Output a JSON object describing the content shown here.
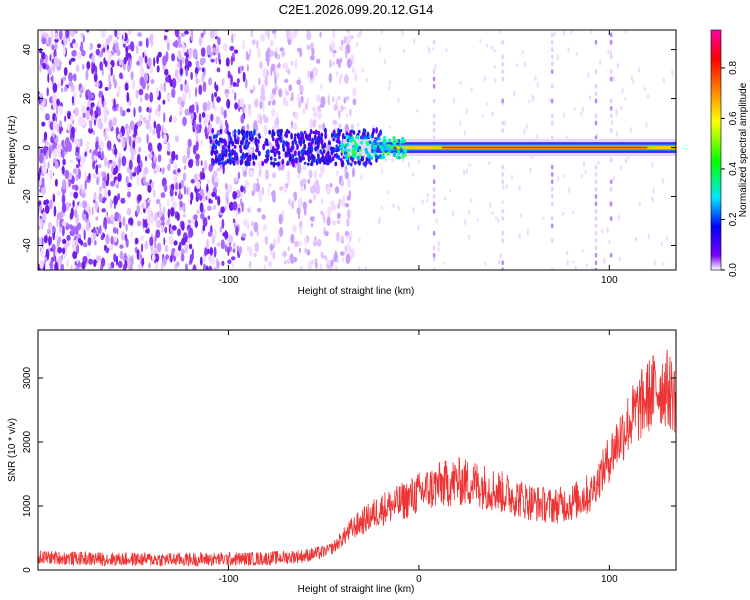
{
  "title": "C2E1.2026.099.20.12.G14",
  "chart_data": [
    {
      "type": "heatmap",
      "xlabel": "Height of straight line (km)",
      "ylabel": "Frequency (Hz)",
      "xlim": [
        -200,
        135
      ],
      "ylim": [
        -50,
        48
      ],
      "xticks": [
        -100,
        0,
        100
      ],
      "xtick_labels": [
        "-100",
        "",
        "100"
      ],
      "yticks": [
        -40,
        -20,
        0,
        20,
        40
      ],
      "ytick_labels": [
        "-40",
        "-20",
        "0",
        "20",
        "40"
      ],
      "colorbar": {
        "label": "Normalized spectral amplitude",
        "range": [
          0,
          0.95
        ],
        "ticks": [
          0,
          0.2,
          0.4,
          0.6,
          0.8
        ],
        "tick_labels": [
          "0.0",
          "0.2",
          "0.4",
          "0.6",
          "0.8"
        ],
        "colormap": [
          "#ffffff",
          "#7a00ff",
          "#0000ff",
          "#00e5ff",
          "#00ff00",
          "#ffff00",
          "#ff8000",
          "#ff0000",
          "#ff00aa"
        ]
      },
      "signal_band": {
        "frequency_hz": 0,
        "start_km": -40,
        "end_km": 135,
        "peak_amplitude": 0.85
      },
      "noise_region_km": [
        -200,
        -45
      ],
      "vertical_streaks_km": [
        8,
        44,
        70,
        93,
        101
      ]
    },
    {
      "type": "line",
      "xlabel": "Height of straight line (km)",
      "ylabel": "SNR (10 * v/v)",
      "xlim": [
        -200,
        135
      ],
      "ylim": [
        0,
        3750
      ],
      "xticks": [
        -100,
        0,
        100
      ],
      "xtick_labels": [
        "-100",
        "0",
        "100"
      ],
      "yticks": [
        0,
        1000,
        2000,
        3000
      ],
      "ytick_labels": [
        "0",
        "1000",
        "2000",
        "3000"
      ],
      "series": [
        {
          "color": "#ee3333",
          "x": [
            -200,
            -180,
            -160,
            -140,
            -120,
            -100,
            -80,
            -60,
            -50,
            -45,
            -40,
            -35,
            -30,
            -25,
            -20,
            -10,
            0,
            10,
            20,
            30,
            40,
            50,
            60,
            70,
            80,
            90,
            95,
            100,
            105,
            110,
            115,
            120,
            125,
            130,
            135
          ],
          "y": [
            200,
            180,
            170,
            165,
            165,
            170,
            180,
            220,
            280,
            350,
            500,
            650,
            750,
            850,
            950,
            1050,
            1200,
            1320,
            1380,
            1350,
            1250,
            1150,
            1050,
            1000,
            1050,
            1200,
            1450,
            1750,
            2050,
            2300,
            2500,
            2700,
            2850,
            2850,
            2700
          ]
        }
      ]
    }
  ]
}
